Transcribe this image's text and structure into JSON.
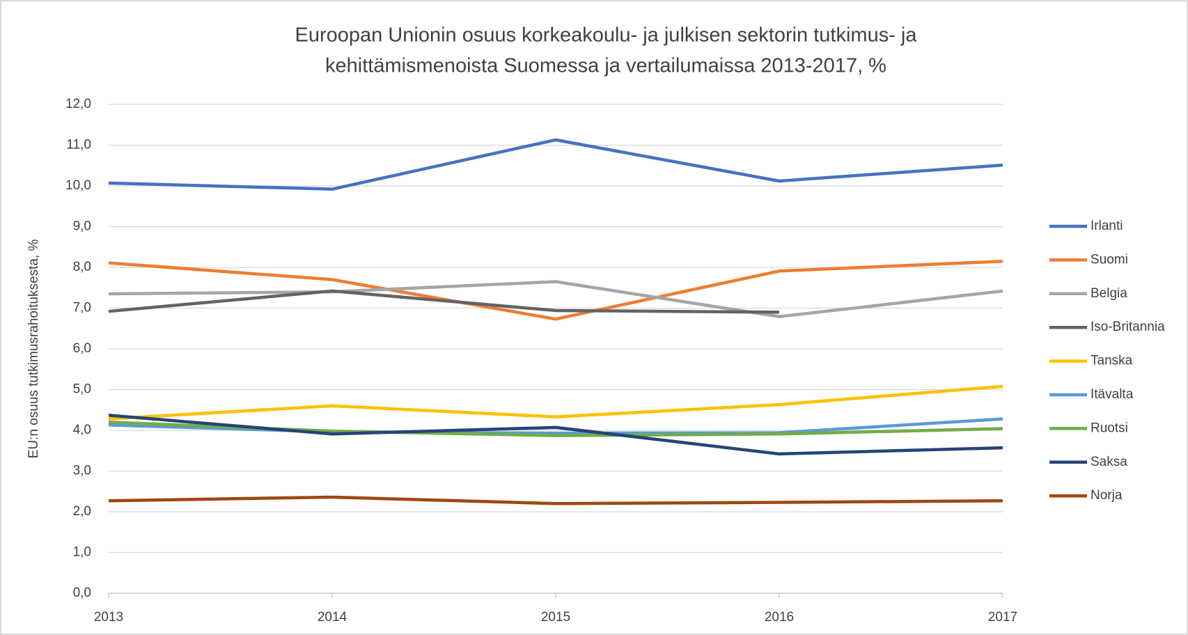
{
  "chart_data": {
    "type": "line",
    "title": [
      "Euroopan Unionin osuus korkeakoulu- ja julkisen sektorin tutkimus- ja",
      "kehittämismenoista  Suomessa ja vertailumaissa 2013-2017, %"
    ],
    "y_label": "EU:n osuus tutkimusrahoituksesta, %",
    "categories": [
      "2013",
      "2014",
      "2015",
      "2016",
      "2017"
    ],
    "series": [
      {
        "name": "Irlanti",
        "color": "#4472c4",
        "values": [
          10.07,
          9.92,
          11.13,
          10.12,
          10.51
        ]
      },
      {
        "name": "Suomi",
        "color": "#ed7d31",
        "values": [
          8.11,
          7.7,
          6.73,
          7.91,
          8.15
        ]
      },
      {
        "name": "Belgia",
        "color": "#a5a5a5",
        "values": [
          7.35,
          7.4,
          7.65,
          6.79,
          7.42
        ]
      },
      {
        "name": "Iso-Britannia",
        "color": "#636363",
        "values": [
          6.92,
          7.42,
          6.94,
          6.9,
          null
        ]
      },
      {
        "name": "Tanska",
        "color": "#ffc000",
        "values": [
          4.28,
          4.6,
          4.33,
          4.63,
          5.08
        ]
      },
      {
        "name": "Itävalta",
        "color": "#5b9bd5",
        "values": [
          4.13,
          3.96,
          3.93,
          3.94,
          4.28
        ]
      },
      {
        "name": "Ruotsi",
        "color": "#70ad47",
        "values": [
          4.2,
          3.98,
          3.87,
          3.91,
          4.04
        ]
      },
      {
        "name": "Saksa",
        "color": "#264478",
        "values": [
          4.37,
          3.91,
          4.07,
          3.42,
          3.57
        ]
      },
      {
        "name": "Norja",
        "color": "#9e480e",
        "values": [
          2.27,
          2.36,
          2.2,
          2.23,
          2.27
        ]
      }
    ],
    "ylim": [
      0,
      12
    ],
    "yticks": [
      {
        "value": 0,
        "label": "0,0"
      },
      {
        "value": 1,
        "label": "1,0"
      },
      {
        "value": 2,
        "label": "2,0"
      },
      {
        "value": 3,
        "label": "3,0"
      },
      {
        "value": 4,
        "label": "4,0"
      },
      {
        "value": 5,
        "label": "5,0"
      },
      {
        "value": 6,
        "label": "6,0"
      },
      {
        "value": 7,
        "label": "7,0"
      },
      {
        "value": 8,
        "label": "8,0"
      },
      {
        "value": 9,
        "label": "9,0"
      },
      {
        "value": 10,
        "label": "10,0"
      },
      {
        "value": 11,
        "label": "11,0"
      },
      {
        "value": 12,
        "label": "12,0"
      }
    ],
    "grid": true,
    "legend": "right"
  }
}
